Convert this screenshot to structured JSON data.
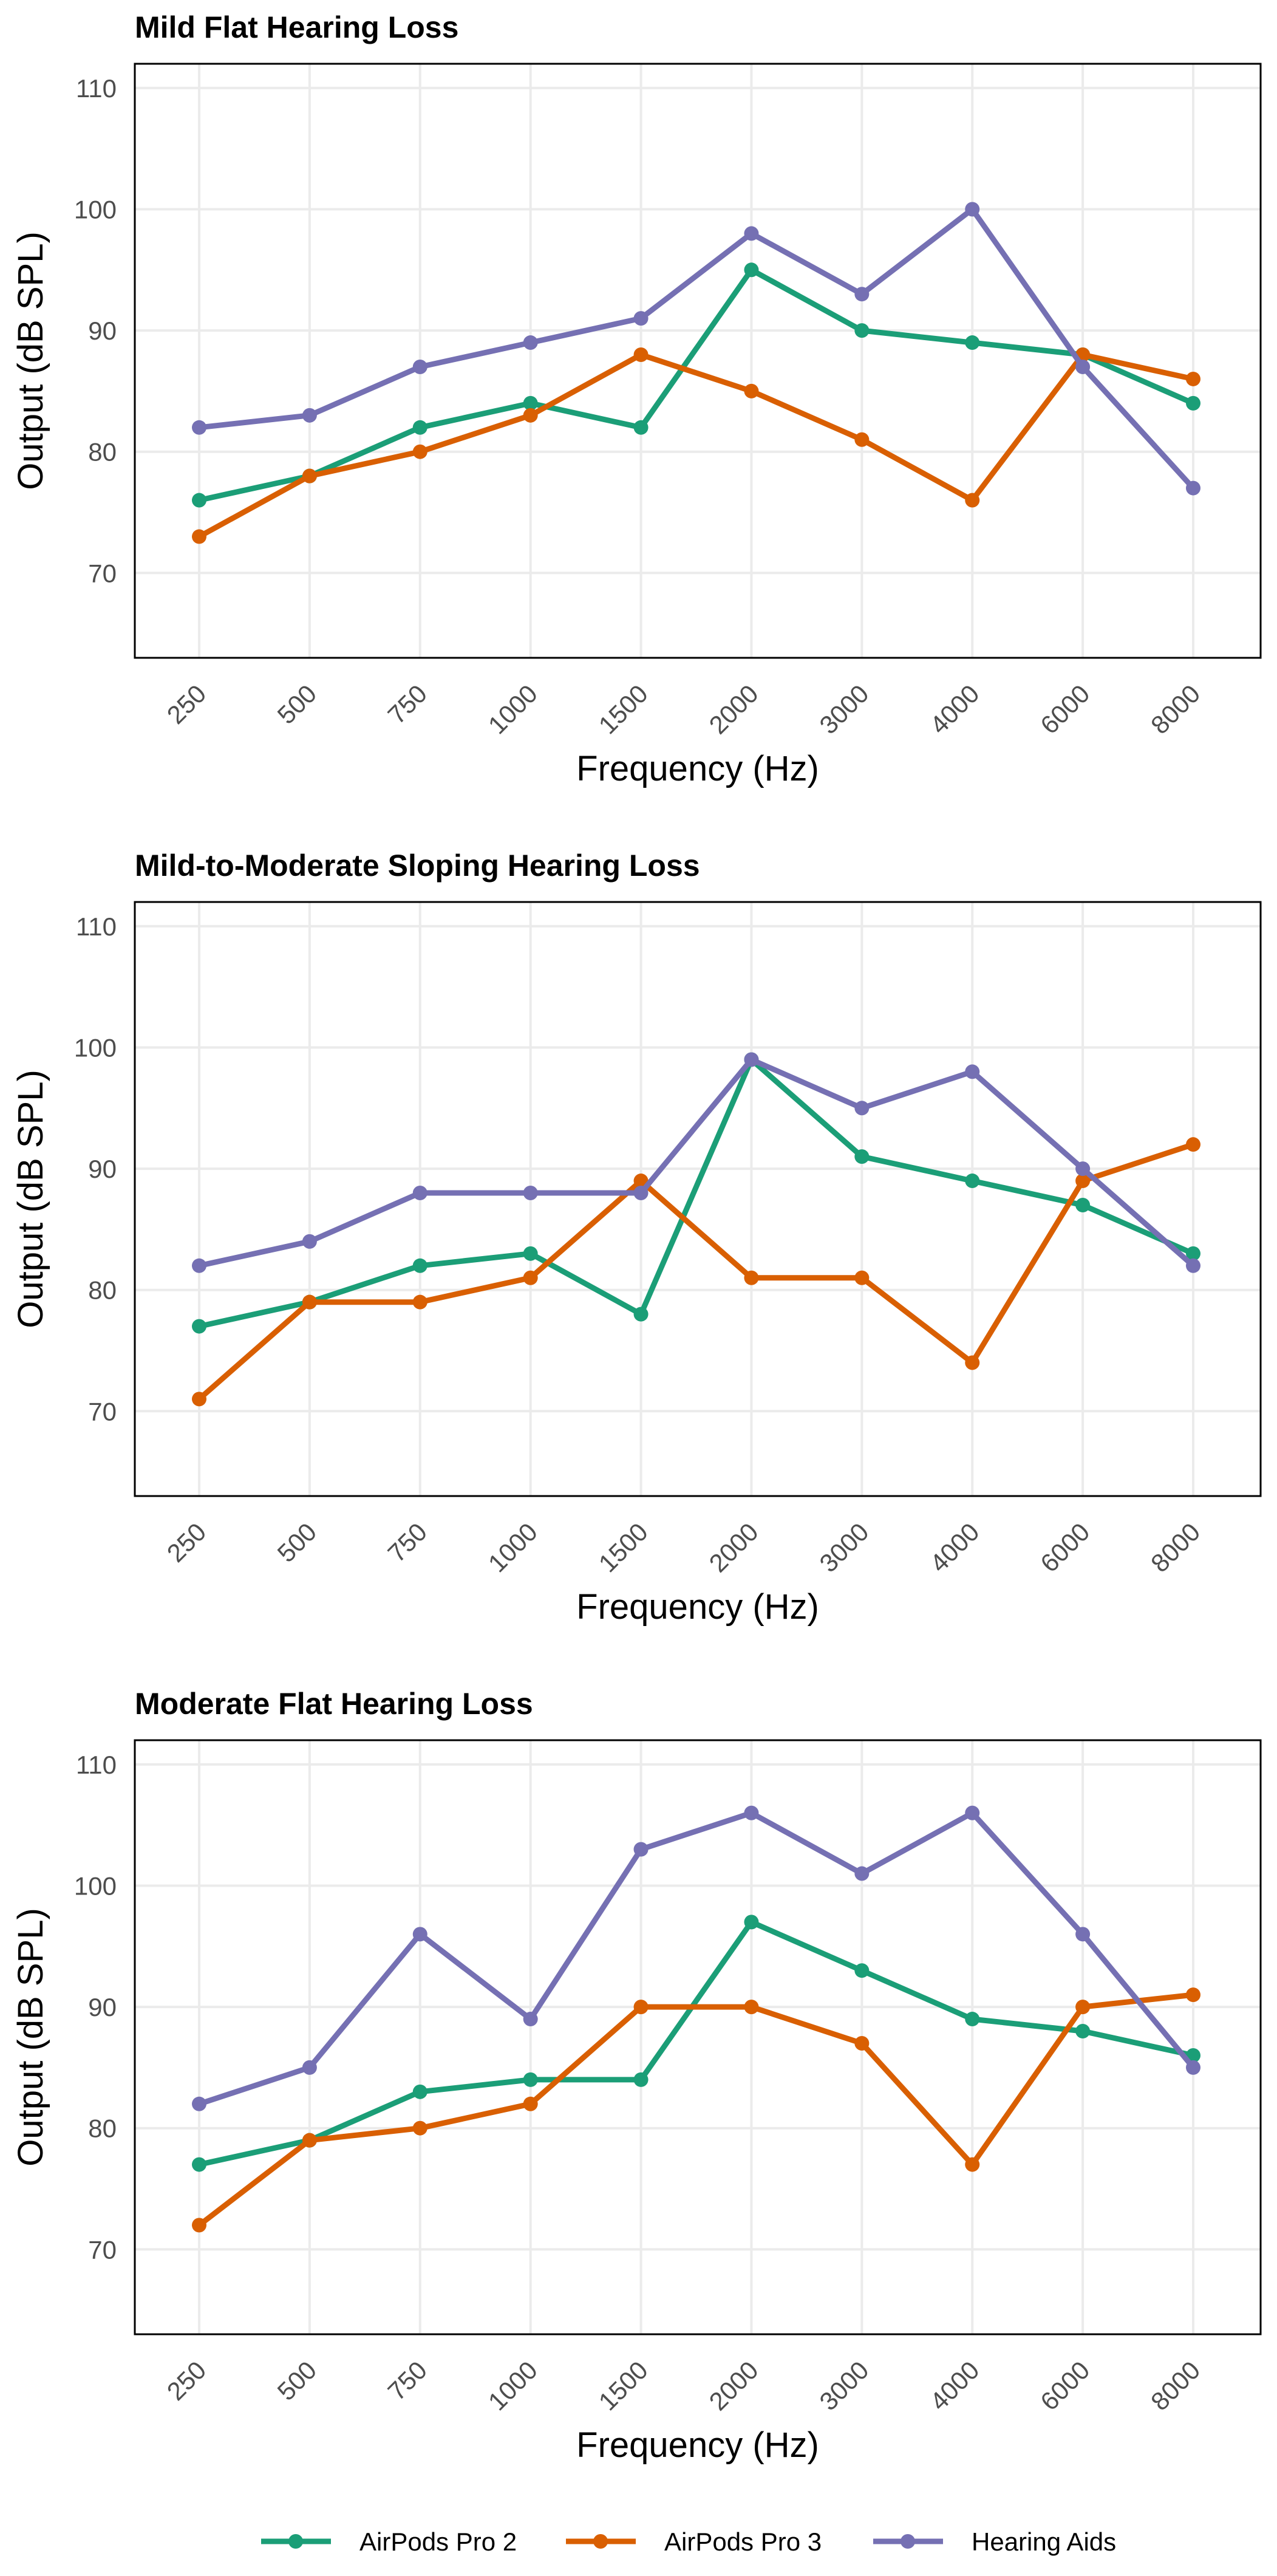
{
  "chart_data": [
    {
      "type": "line",
      "title": "Mild Flat Hearing Loss",
      "xlabel": "Frequency (Hz)",
      "ylabel": "Output (dB SPL)",
      "categories": [
        "250",
        "500",
        "750",
        "1000",
        "1500",
        "2000",
        "3000",
        "4000",
        "6000",
        "8000"
      ],
      "yticks": [
        "70",
        "80",
        "90",
        "100",
        "110"
      ],
      "ylim": [
        63,
        112
      ],
      "grid": true,
      "series": [
        {
          "name": "AirPods Pro 2",
          "color": "#1b9e77",
          "values": [
            76,
            78,
            82,
            84,
            82,
            95,
            90,
            89,
            88,
            84
          ]
        },
        {
          "name": "AirPods Pro 3",
          "color": "#d95f02",
          "values": [
            73,
            78,
            80,
            83,
            88,
            85,
            81,
            76,
            88,
            86
          ]
        },
        {
          "name": "Hearing Aids",
          "color": "#7570b3",
          "values": [
            82,
            83,
            87,
            89,
            91,
            98,
            93,
            100,
            87,
            77
          ]
        }
      ]
    },
    {
      "type": "line",
      "title": "Mild-to-Moderate Sloping Hearing Loss",
      "xlabel": "Frequency (Hz)",
      "ylabel": "Output (dB SPL)",
      "categories": [
        "250",
        "500",
        "750",
        "1000",
        "1500",
        "2000",
        "3000",
        "4000",
        "6000",
        "8000"
      ],
      "yticks": [
        "70",
        "80",
        "90",
        "100",
        "110"
      ],
      "ylim": [
        63,
        112
      ],
      "grid": true,
      "series": [
        {
          "name": "AirPods Pro 2",
          "color": "#1b9e77",
          "values": [
            77,
            79,
            82,
            83,
            78,
            99,
            91,
            89,
            87,
            83
          ]
        },
        {
          "name": "AirPods Pro 3",
          "color": "#d95f02",
          "values": [
            71,
            79,
            79,
            81,
            89,
            81,
            81,
            74,
            89,
            92
          ]
        },
        {
          "name": "Hearing Aids",
          "color": "#7570b3",
          "values": [
            82,
            84,
            88,
            88,
            88,
            99,
            95,
            98,
            90,
            82
          ]
        }
      ]
    },
    {
      "type": "line",
      "title": "Moderate Flat Hearing Loss",
      "xlabel": "Frequency (Hz)",
      "ylabel": "Output (dB SPL)",
      "categories": [
        "250",
        "500",
        "750",
        "1000",
        "1500",
        "2000",
        "3000",
        "4000",
        "6000",
        "8000"
      ],
      "yticks": [
        "70",
        "80",
        "90",
        "100",
        "110"
      ],
      "ylim": [
        63,
        112
      ],
      "grid": true,
      "series": [
        {
          "name": "AirPods Pro 2",
          "color": "#1b9e77",
          "values": [
            77,
            79,
            83,
            84,
            84,
            97,
            93,
            89,
            88,
            86
          ]
        },
        {
          "name": "AirPods Pro 3",
          "color": "#d95f02",
          "values": [
            72,
            79,
            80,
            82,
            90,
            90,
            87,
            77,
            90,
            91
          ]
        },
        {
          "name": "Hearing Aids",
          "color": "#7570b3",
          "values": [
            82,
            85,
            96,
            89,
            103,
            106,
            101,
            106,
            96,
            85
          ]
        }
      ]
    }
  ],
  "legend": {
    "position": "bottom",
    "items": [
      {
        "label": "AirPods Pro 2",
        "color": "#1b9e77"
      },
      {
        "label": "AirPods Pro 3",
        "color": "#d95f02"
      },
      {
        "label": "Hearing Aids",
        "color": "#7570b3"
      }
    ]
  }
}
